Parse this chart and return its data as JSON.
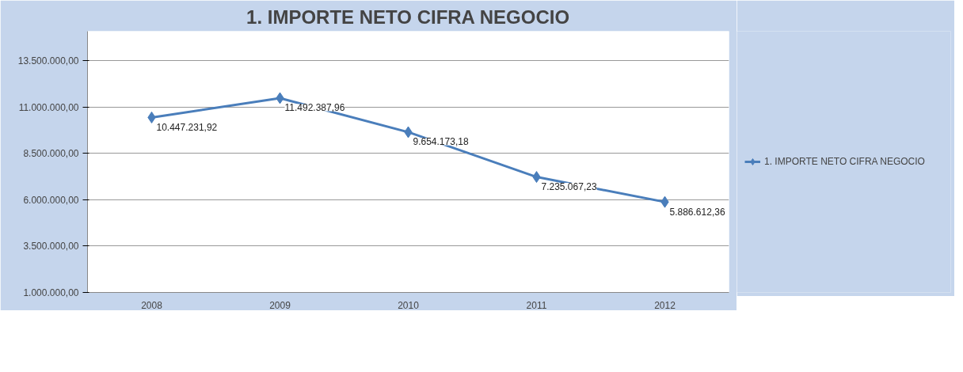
{
  "chart_data": {
    "type": "line",
    "title": "1. IMPORTE NETO CIFRA NEGOCIO",
    "categories": [
      "2008",
      "2009",
      "2010",
      "2011",
      "2012"
    ],
    "series": [
      {
        "name": "1. IMPORTE NETO CIFRA NEGOCIO",
        "color": "#4a7ebb",
        "values": [
          10447231.92,
          11492387.96,
          9654173.18,
          7235067.23,
          5886612.36
        ],
        "value_labels": [
          "10.447.231,92",
          "11.492.387,96",
          "9.654.173,18",
          "7.235.067,23",
          "5.886.612,36"
        ]
      }
    ],
    "ylim": [
      1000000,
      15100000
    ],
    "yticks": [
      {
        "value": 1000000,
        "label": "1.000.000,00"
      },
      {
        "value": 3500000,
        "label": "3.500.000,00"
      },
      {
        "value": 6000000,
        "label": "6.000.000,00"
      },
      {
        "value": 8500000,
        "label": "8.500.000,00"
      },
      {
        "value": 11000000,
        "label": "11.000.000,00"
      },
      {
        "value": 13500000,
        "label": "13.500.000,00"
      }
    ],
    "grid": "y",
    "legend": "right",
    "marker": "diamond",
    "line_style": "solid"
  }
}
